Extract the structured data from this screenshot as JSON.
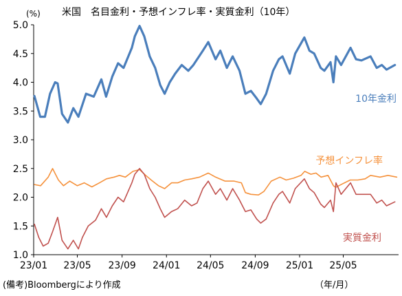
{
  "chart_data": {
    "type": "line",
    "title": "米国　名目金利・予想インフレ率・実質金利（10年）",
    "ylabel": "(%)",
    "xlabel": "（年/月）",
    "source_note": "(備考)Bloombergにより作成",
    "ylim": [
      1.0,
      5.0
    ],
    "yticks": [
      "1.0",
      "1.5",
      "2.0",
      "2.5",
      "3.0",
      "3.5",
      "4.0",
      "4.5",
      "5.0"
    ],
    "xlim": [
      "2023-01-01",
      "2025-09-30"
    ],
    "xticks": [
      {
        "date": "2023-01-01",
        "label": "23/01"
      },
      {
        "date": "2023-05-01",
        "label": "23/05"
      },
      {
        "date": "2023-09-01",
        "label": "23/09"
      },
      {
        "date": "2024-01-01",
        "label": "24/01"
      },
      {
        "date": "2024-05-01",
        "label": "24/05"
      },
      {
        "date": "2024-09-01",
        "label": "24/09"
      },
      {
        "date": "2025-01-01",
        "label": "25/01"
      },
      {
        "date": "2025-05-01",
        "label": "25/05"
      }
    ],
    "grid": false,
    "series": [
      {
        "name": "10年金利",
        "color": "#4a7ebb",
        "points": [
          [
            "2023-01-03",
            3.76
          ],
          [
            "2023-01-19",
            3.4
          ],
          [
            "2023-02-01",
            3.4
          ],
          [
            "2023-02-15",
            3.8
          ],
          [
            "2023-03-01",
            4.0
          ],
          [
            "2023-03-08",
            3.98
          ],
          [
            "2023-03-20",
            3.45
          ],
          [
            "2023-04-05",
            3.3
          ],
          [
            "2023-04-20",
            3.55
          ],
          [
            "2023-05-04",
            3.4
          ],
          [
            "2023-05-25",
            3.8
          ],
          [
            "2023-06-15",
            3.75
          ],
          [
            "2023-07-06",
            4.05
          ],
          [
            "2023-07-19",
            3.75
          ],
          [
            "2023-08-05",
            4.1
          ],
          [
            "2023-08-21",
            4.33
          ],
          [
            "2023-09-05",
            4.25
          ],
          [
            "2023-09-28",
            4.6
          ],
          [
            "2023-10-06",
            4.8
          ],
          [
            "2023-10-19",
            4.98
          ],
          [
            "2023-11-01",
            4.8
          ],
          [
            "2023-11-16",
            4.45
          ],
          [
            "2023-12-01",
            4.25
          ],
          [
            "2023-12-15",
            3.95
          ],
          [
            "2023-12-27",
            3.8
          ],
          [
            "2024-01-10",
            4.0
          ],
          [
            "2024-01-25",
            4.15
          ],
          [
            "2024-02-12",
            4.3
          ],
          [
            "2024-03-01",
            4.2
          ],
          [
            "2024-03-15",
            4.3
          ],
          [
            "2024-04-10",
            4.55
          ],
          [
            "2024-04-25",
            4.7
          ],
          [
            "2024-05-15",
            4.4
          ],
          [
            "2024-05-28",
            4.55
          ],
          [
            "2024-06-15",
            4.25
          ],
          [
            "2024-07-01",
            4.45
          ],
          [
            "2024-07-20",
            4.2
          ],
          [
            "2024-08-05",
            3.8
          ],
          [
            "2024-08-20",
            3.85
          ],
          [
            "2024-09-05",
            3.72
          ],
          [
            "2024-09-16",
            3.62
          ],
          [
            "2024-10-01",
            3.8
          ],
          [
            "2024-10-20",
            4.2
          ],
          [
            "2024-11-05",
            4.4
          ],
          [
            "2024-11-15",
            4.45
          ],
          [
            "2024-12-05",
            4.15
          ],
          [
            "2024-12-20",
            4.5
          ],
          [
            "2025-01-14",
            4.78
          ],
          [
            "2025-01-28",
            4.55
          ],
          [
            "2025-02-10",
            4.5
          ],
          [
            "2025-02-28",
            4.25
          ],
          [
            "2025-03-10",
            4.2
          ],
          [
            "2025-03-27",
            4.35
          ],
          [
            "2025-04-04",
            4.0
          ],
          [
            "2025-04-11",
            4.45
          ],
          [
            "2025-04-25",
            4.3
          ],
          [
            "2025-05-21",
            4.6
          ],
          [
            "2025-06-05",
            4.4
          ],
          [
            "2025-06-20",
            4.38
          ],
          [
            "2025-07-15",
            4.45
          ],
          [
            "2025-08-01",
            4.25
          ],
          [
            "2025-08-15",
            4.3
          ],
          [
            "2025-08-28",
            4.22
          ],
          [
            "2025-09-20",
            4.3
          ]
        ]
      },
      {
        "name": "予想インフレ率",
        "color": "#f5913b",
        "points": [
          [
            "2023-01-03",
            2.22
          ],
          [
            "2023-01-20",
            2.2
          ],
          [
            "2023-02-10",
            2.35
          ],
          [
            "2023-02-22",
            2.5
          ],
          [
            "2023-03-10",
            2.3
          ],
          [
            "2023-03-24",
            2.2
          ],
          [
            "2023-04-10",
            2.28
          ],
          [
            "2023-05-01",
            2.2
          ],
          [
            "2023-05-20",
            2.25
          ],
          [
            "2023-06-10",
            2.18
          ],
          [
            "2023-07-01",
            2.25
          ],
          [
            "2023-07-20",
            2.32
          ],
          [
            "2023-08-10",
            2.35
          ],
          [
            "2023-08-25",
            2.38
          ],
          [
            "2023-09-10",
            2.35
          ],
          [
            "2023-10-01",
            2.45
          ],
          [
            "2023-10-19",
            2.48
          ],
          [
            "2023-11-05",
            2.38
          ],
          [
            "2023-11-20",
            2.3
          ],
          [
            "2023-12-10",
            2.2
          ],
          [
            "2023-12-27",
            2.15
          ],
          [
            "2024-01-15",
            2.25
          ],
          [
            "2024-02-01",
            2.25
          ],
          [
            "2024-02-20",
            2.3
          ],
          [
            "2024-03-10",
            2.32
          ],
          [
            "2024-04-01",
            2.35
          ],
          [
            "2024-04-25",
            2.42
          ],
          [
            "2024-05-15",
            2.35
          ],
          [
            "2024-06-10",
            2.28
          ],
          [
            "2024-07-05",
            2.28
          ],
          [
            "2024-07-25",
            2.25
          ],
          [
            "2024-08-05",
            2.08
          ],
          [
            "2024-08-20",
            2.05
          ],
          [
            "2024-09-10",
            2.04
          ],
          [
            "2024-09-25",
            2.1
          ],
          [
            "2024-10-15",
            2.28
          ],
          [
            "2024-11-08",
            2.35
          ],
          [
            "2024-11-25",
            2.3
          ],
          [
            "2024-12-15",
            2.33
          ],
          [
            "2025-01-05",
            2.38
          ],
          [
            "2025-01-15",
            2.45
          ],
          [
            "2025-02-01",
            2.4
          ],
          [
            "2025-02-15",
            2.42
          ],
          [
            "2025-03-01",
            2.35
          ],
          [
            "2025-03-20",
            2.38
          ],
          [
            "2025-04-04",
            2.2
          ],
          [
            "2025-04-10",
            2.17
          ],
          [
            "2025-04-25",
            2.22
          ],
          [
            "2025-05-20",
            2.3
          ],
          [
            "2025-06-10",
            2.3
          ],
          [
            "2025-06-30",
            2.32
          ],
          [
            "2025-07-15",
            2.38
          ],
          [
            "2025-08-10",
            2.35
          ],
          [
            "2025-09-01",
            2.38
          ],
          [
            "2025-09-25",
            2.35
          ]
        ]
      },
      {
        "name": "実質金利",
        "color": "#c0504d",
        "points": [
          [
            "2023-01-03",
            1.53
          ],
          [
            "2023-01-15",
            1.3
          ],
          [
            "2023-01-27",
            1.15
          ],
          [
            "2023-02-10",
            1.2
          ],
          [
            "2023-02-22",
            1.4
          ],
          [
            "2023-03-08",
            1.65
          ],
          [
            "2023-03-20",
            1.25
          ],
          [
            "2023-04-05",
            1.1
          ],
          [
            "2023-04-20",
            1.25
          ],
          [
            "2023-05-04",
            1.1
          ],
          [
            "2023-05-15",
            1.3
          ],
          [
            "2023-05-31",
            1.5
          ],
          [
            "2023-06-20",
            1.6
          ],
          [
            "2023-07-06",
            1.8
          ],
          [
            "2023-07-20",
            1.65
          ],
          [
            "2023-08-05",
            1.85
          ],
          [
            "2023-08-21",
            2.0
          ],
          [
            "2023-09-05",
            1.92
          ],
          [
            "2023-09-28",
            2.25
          ],
          [
            "2023-10-06",
            2.4
          ],
          [
            "2023-10-19",
            2.5
          ],
          [
            "2023-11-01",
            2.4
          ],
          [
            "2023-11-16",
            2.15
          ],
          [
            "2023-12-01",
            2.0
          ],
          [
            "2023-12-15",
            1.8
          ],
          [
            "2023-12-27",
            1.65
          ],
          [
            "2024-01-15",
            1.75
          ],
          [
            "2024-02-01",
            1.8
          ],
          [
            "2024-02-20",
            1.95
          ],
          [
            "2024-03-10",
            1.85
          ],
          [
            "2024-03-25",
            1.9
          ],
          [
            "2024-04-10",
            2.15
          ],
          [
            "2024-04-25",
            2.28
          ],
          [
            "2024-05-15",
            2.05
          ],
          [
            "2024-05-28",
            2.15
          ],
          [
            "2024-06-15",
            1.95
          ],
          [
            "2024-07-01",
            2.15
          ],
          [
            "2024-07-20",
            1.95
          ],
          [
            "2024-08-05",
            1.75
          ],
          [
            "2024-08-20",
            1.78
          ],
          [
            "2024-09-05",
            1.62
          ],
          [
            "2024-09-16",
            1.55
          ],
          [
            "2024-10-01",
            1.62
          ],
          [
            "2024-10-20",
            1.9
          ],
          [
            "2024-11-05",
            2.05
          ],
          [
            "2024-11-15",
            2.1
          ],
          [
            "2024-12-05",
            1.9
          ],
          [
            "2024-12-20",
            2.15
          ],
          [
            "2025-01-14",
            2.32
          ],
          [
            "2025-01-28",
            2.15
          ],
          [
            "2025-02-10",
            2.08
          ],
          [
            "2025-02-28",
            1.88
          ],
          [
            "2025-03-10",
            1.82
          ],
          [
            "2025-03-27",
            1.95
          ],
          [
            "2025-04-04",
            1.75
          ],
          [
            "2025-04-11",
            2.25
          ],
          [
            "2025-04-25",
            2.05
          ],
          [
            "2025-05-21",
            2.25
          ],
          [
            "2025-06-05",
            2.05
          ],
          [
            "2025-06-20",
            2.05
          ],
          [
            "2025-07-15",
            2.05
          ],
          [
            "2025-08-01",
            1.9
          ],
          [
            "2025-08-15",
            1.95
          ],
          [
            "2025-08-28",
            1.85
          ],
          [
            "2025-09-20",
            1.92
          ]
        ]
      }
    ]
  }
}
